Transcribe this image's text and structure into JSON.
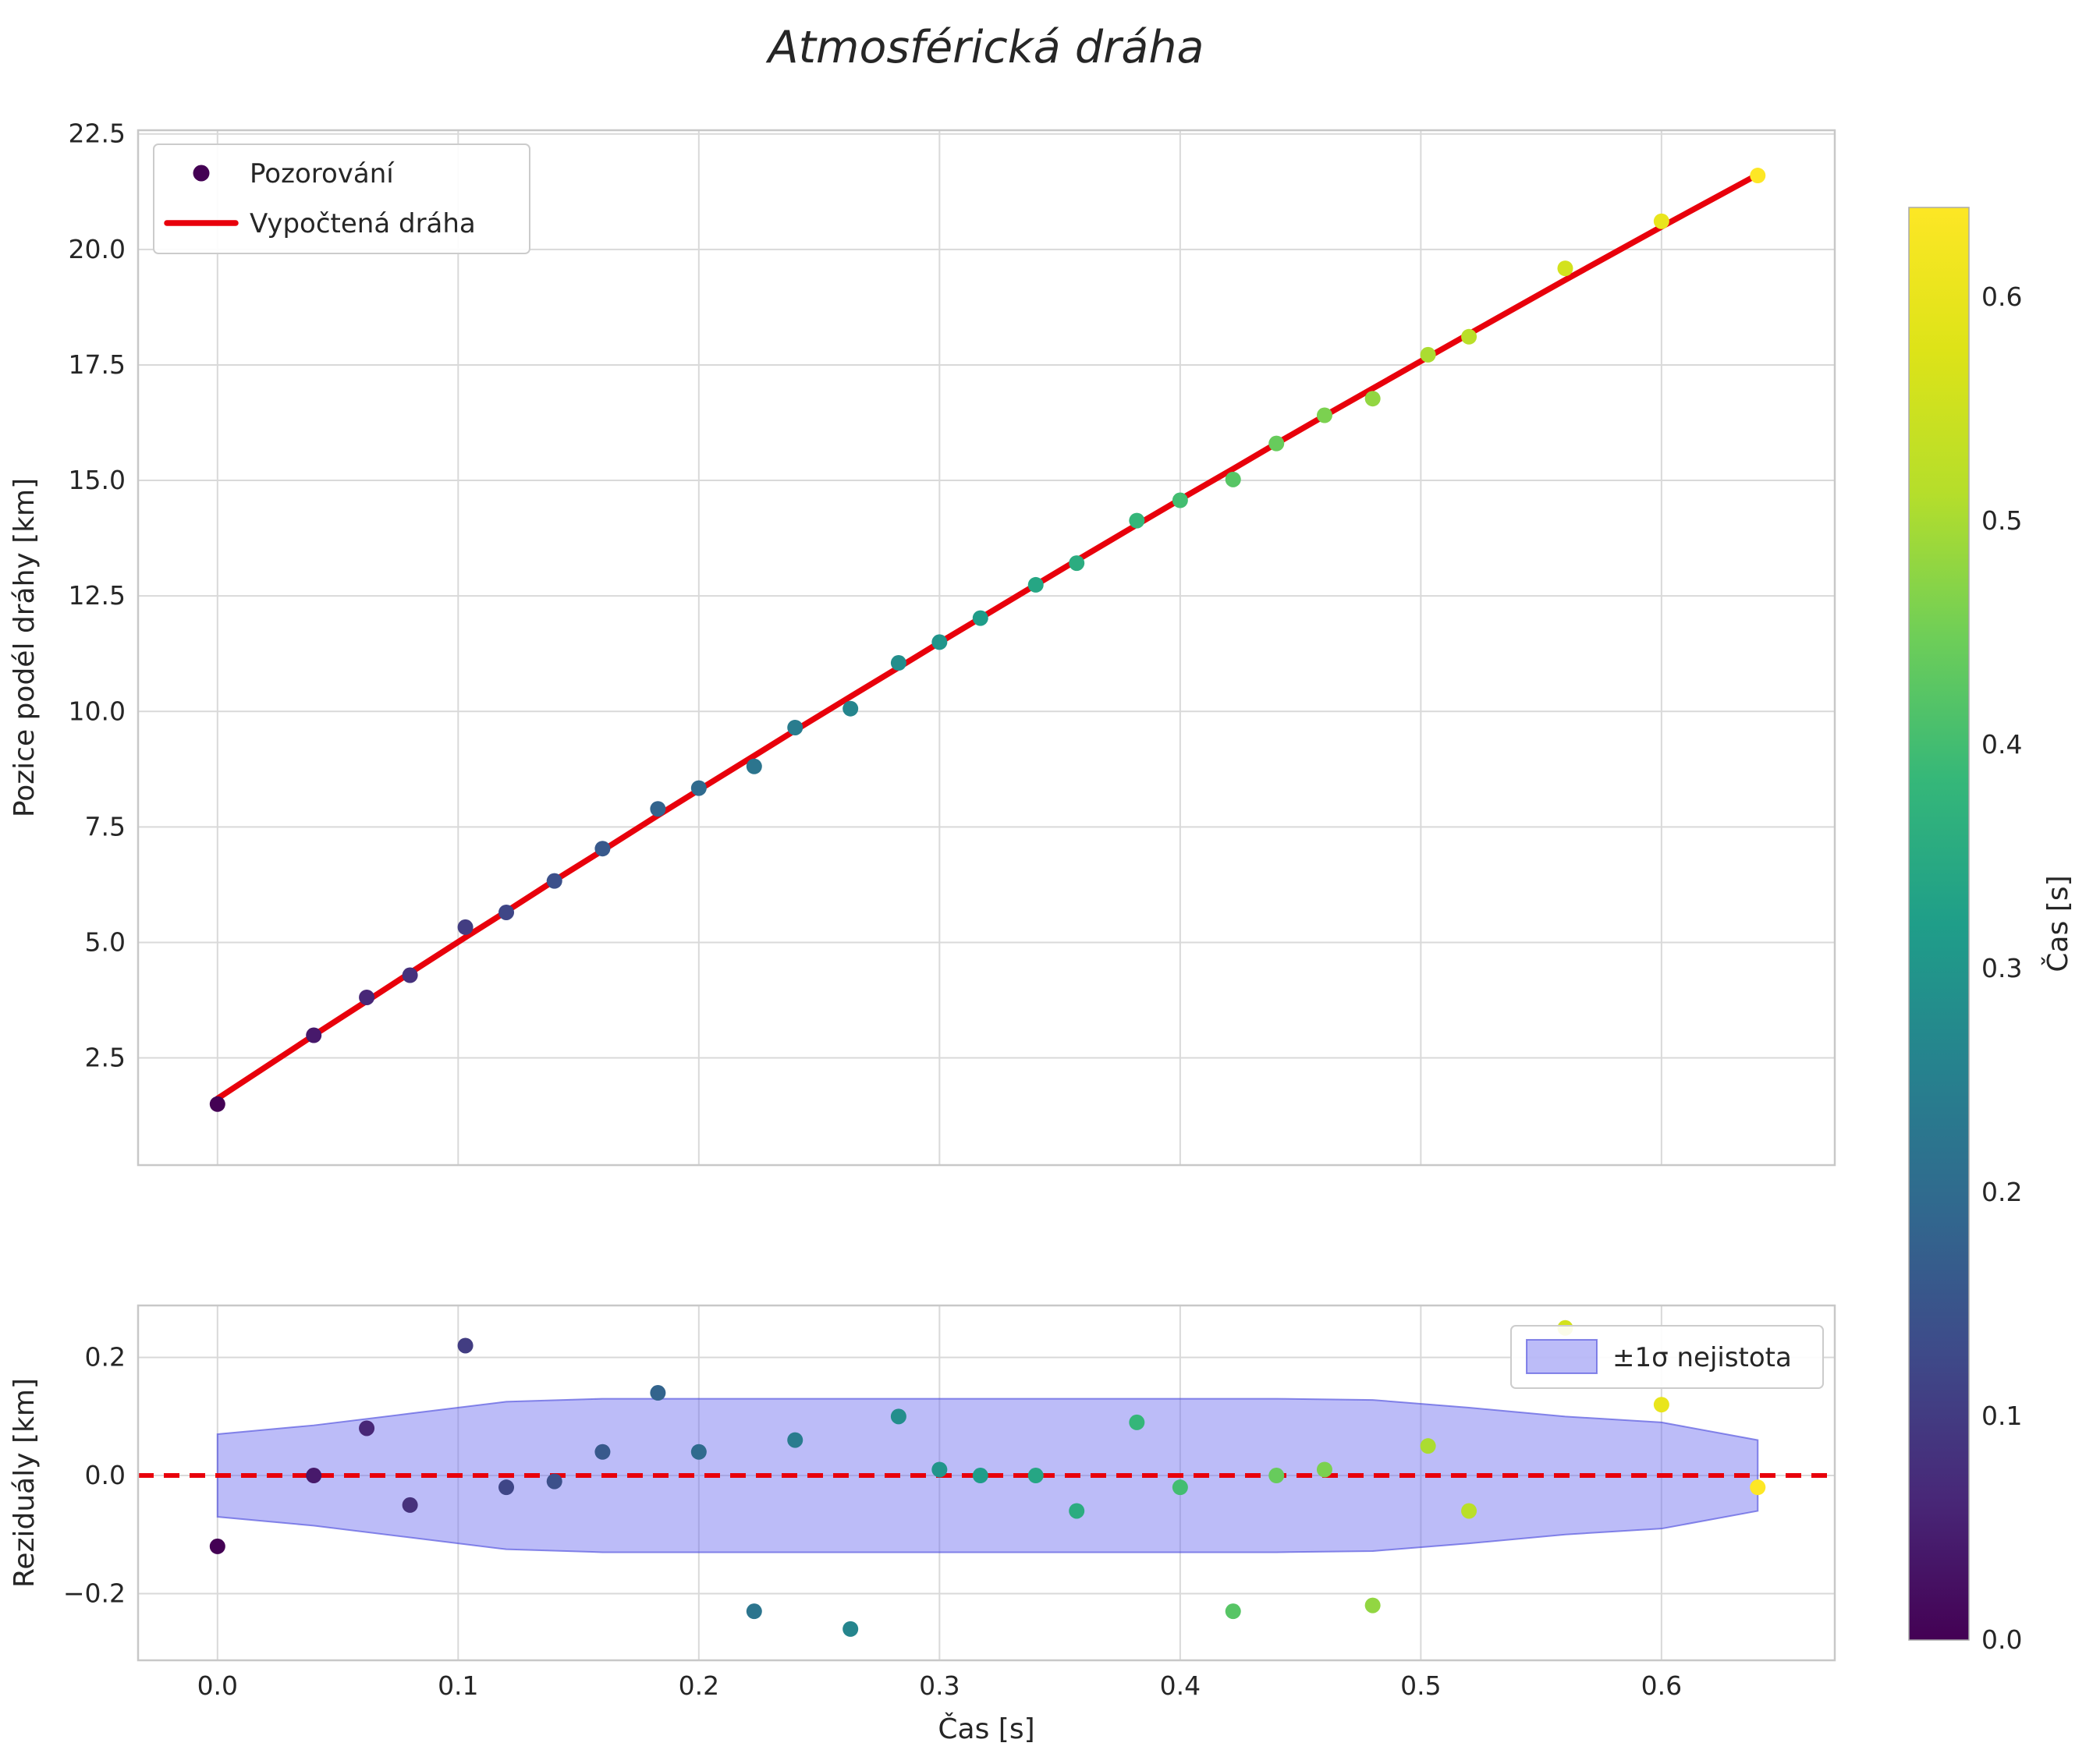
{
  "title": "Atmosférická dráha",
  "colors": {
    "fit_line": "#e8000b",
    "zero_line": "#e8000b",
    "band_fill": "#6b6bef",
    "band_fill_opacity": 0.45,
    "band_edge": "#5050dd",
    "grid": "#d9d9d9",
    "spine": "#c8c8c8",
    "text": "#262626",
    "legend_border": "#cccccc",
    "legend_bg": "#ffffff"
  },
  "colorbar": {
    "label": "Čas [s]",
    "colormap": "viridis",
    "vmin": 0.0,
    "vmax": 0.64,
    "ticks": [
      0.0,
      0.1,
      0.2,
      0.3,
      0.4,
      0.5,
      0.6
    ]
  },
  "chart_data": [
    {
      "type": "scatter",
      "panel": "trajectory",
      "title": "Atmosférická dráha",
      "xlabel": "",
      "ylabel": "Pozice podél dráhy [km]",
      "xlim": [
        -0.033,
        0.672
      ],
      "ylim": [
        0.18,
        22.58
      ],
      "xticks": [
        0.0,
        0.1,
        0.2,
        0.3,
        0.4,
        0.5,
        0.6
      ],
      "yticks": [
        2.5,
        5.0,
        7.5,
        10.0,
        12.5,
        15.0,
        17.5,
        20.0,
        22.5
      ],
      "x_tick_labels_visible": false,
      "grid": true,
      "legend_position": "upper-left",
      "legend": [
        {
          "label": "Pozorování",
          "marker": "point"
        },
        {
          "label": "Vypočtená dráha",
          "marker": "line"
        }
      ],
      "series": [
        {
          "name": "Pozorování",
          "type": "scatter",
          "color_by": "time",
          "x": [
            0.0,
            0.04,
            0.062,
            0.08,
            0.103,
            0.12,
            0.14,
            0.16,
            0.183,
            0.2,
            0.223,
            0.24,
            0.263,
            0.283,
            0.3,
            0.317,
            0.34,
            0.357,
            0.382,
            0.4,
            0.422,
            0.44,
            0.46,
            0.48,
            0.503,
            0.52,
            0.56,
            0.6,
            0.64
          ],
          "y": [
            1.5,
            2.99,
            3.81,
            4.29,
            5.33,
            5.65,
            6.33,
            7.03,
            7.89,
            8.34,
            8.81,
            9.65,
            10.06,
            11.05,
            11.5,
            12.02,
            12.74,
            13.21,
            14.13,
            14.57,
            15.02,
            15.8,
            16.41,
            16.77,
            17.72,
            18.11,
            19.59,
            20.61,
            21.6
          ]
        },
        {
          "name": "Vypočtená dráha",
          "type": "line",
          "color": "#e8000b",
          "x": [
            0.0,
            0.04,
            0.062,
            0.08,
            0.103,
            0.12,
            0.14,
            0.16,
            0.183,
            0.2,
            0.223,
            0.24,
            0.263,
            0.283,
            0.3,
            0.317,
            0.34,
            0.357,
            0.382,
            0.4,
            0.422,
            0.44,
            0.46,
            0.48,
            0.503,
            0.52,
            0.56,
            0.6,
            0.64
          ],
          "y": [
            1.62,
            2.99,
            3.73,
            4.34,
            5.11,
            5.67,
            6.34,
            6.99,
            7.75,
            8.3,
            9.04,
            9.59,
            10.32,
            10.95,
            11.49,
            12.02,
            12.74,
            13.27,
            14.04,
            14.59,
            15.25,
            15.8,
            16.4,
            16.99,
            17.67,
            18.17,
            19.34,
            20.49,
            21.62
          ]
        }
      ]
    },
    {
      "type": "scatter",
      "panel": "residuals",
      "xlabel": "Čas [s]",
      "ylabel": "Reziduály [km]",
      "xlim": [
        -0.033,
        0.672
      ],
      "ylim": [
        -0.313,
        0.288
      ],
      "xticks": [
        0.0,
        0.1,
        0.2,
        0.3,
        0.4,
        0.5,
        0.6
      ],
      "yticks": [
        -0.2,
        0.0,
        0.2
      ],
      "x_tick_labels_visible": true,
      "grid": true,
      "legend_position": "upper-right",
      "legend": [
        {
          "label": "±1σ nejistota",
          "marker": "patch"
        }
      ],
      "zero_line": 0.0,
      "band": {
        "name": "±1σ nejistota",
        "x": [
          0.0,
          0.04,
          0.08,
          0.12,
          0.16,
          0.2,
          0.24,
          0.28,
          0.32,
          0.36,
          0.4,
          0.44,
          0.48,
          0.52,
          0.56,
          0.6,
          0.64
        ],
        "sigma": [
          0.07,
          0.085,
          0.105,
          0.125,
          0.13,
          0.13,
          0.13,
          0.13,
          0.13,
          0.13,
          0.13,
          0.13,
          0.128,
          0.115,
          0.1,
          0.09,
          0.06
        ]
      },
      "series": [
        {
          "name": "Reziduály",
          "type": "scatter",
          "color_by": "time",
          "x": [
            0.0,
            0.04,
            0.062,
            0.08,
            0.103,
            0.12,
            0.14,
            0.16,
            0.183,
            0.2,
            0.223,
            0.24,
            0.263,
            0.283,
            0.3,
            0.317,
            0.34,
            0.357,
            0.382,
            0.4,
            0.422,
            0.44,
            0.46,
            0.48,
            0.503,
            0.52,
            0.56,
            0.6,
            0.64
          ],
          "y": [
            -0.12,
            0.0,
            0.08,
            -0.05,
            0.22,
            -0.02,
            -0.01,
            0.04,
            0.14,
            0.04,
            -0.23,
            0.06,
            -0.26,
            0.1,
            0.01,
            0.0,
            0.0,
            -0.06,
            0.09,
            -0.02,
            -0.23,
            0.0,
            0.01,
            -0.22,
            0.05,
            -0.06,
            0.25,
            0.12,
            -0.02
          ]
        }
      ]
    }
  ]
}
